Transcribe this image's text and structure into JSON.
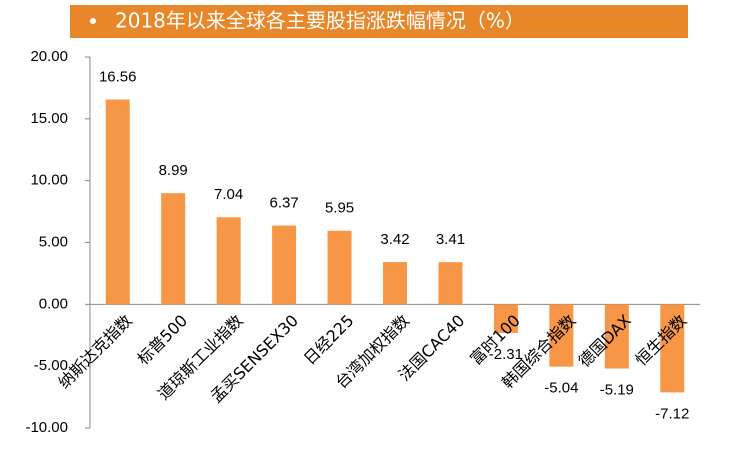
{
  "chart_data": {
    "type": "bar",
    "title": "2018年以来全球各主要股指涨跌幅情况（%）",
    "categories": [
      "纳斯达克指数",
      "标普500",
      "道琼斯工业指数",
      "孟买SENSEX30",
      "日经225",
      "台湾加权指数",
      "法国CAC40",
      "富时100",
      "韩国综合指数",
      "德国DAX",
      "恒生指数"
    ],
    "values": [
      16.56,
      8.99,
      7.04,
      6.37,
      5.95,
      3.42,
      3.41,
      -2.31,
      -5.04,
      -5.19,
      -7.12
    ],
    "color": "#f79646",
    "ylim": [
      -10,
      20
    ],
    "yticks": [
      {
        "value": -10,
        "label": "-10.00"
      },
      {
        "value": -5,
        "label": "-5.00"
      },
      {
        "value": 0,
        "label": "0.00"
      },
      {
        "value": 5,
        "label": "5.00"
      },
      {
        "value": 10,
        "label": "10.00"
      },
      {
        "value": 15,
        "label": "15.00"
      },
      {
        "value": 20,
        "label": "20.00"
      }
    ]
  }
}
